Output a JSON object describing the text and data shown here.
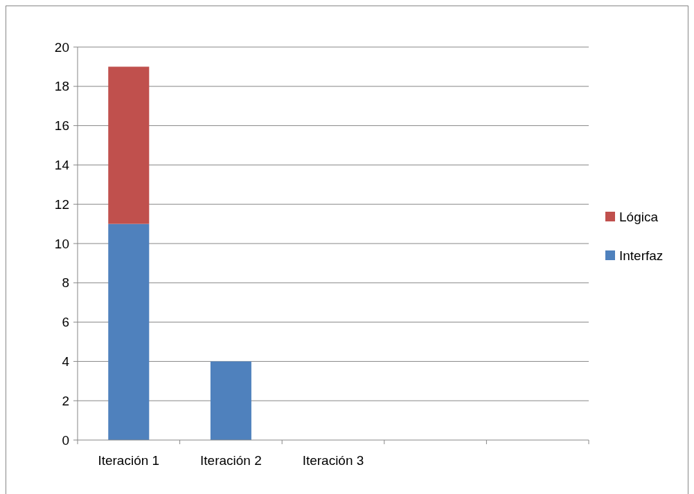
{
  "chart_data": {
    "type": "bar",
    "stacked": true,
    "categories": [
      "Iteración 1",
      "Iteración 2",
      "Iteración 3",
      null,
      null
    ],
    "series": [
      {
        "name": "Interfaz",
        "color": "#4f81bd",
        "values": [
          11,
          4,
          null,
          null,
          null
        ]
      },
      {
        "name": "Lógica",
        "color": "#c0504d",
        "values": [
          8,
          null,
          null,
          null,
          null
        ]
      }
    ],
    "ylim": [
      0,
      20
    ],
    "yticks": [
      0,
      2,
      4,
      6,
      8,
      10,
      12,
      14,
      16,
      18,
      20
    ],
    "grid": "y",
    "legend": "right"
  }
}
